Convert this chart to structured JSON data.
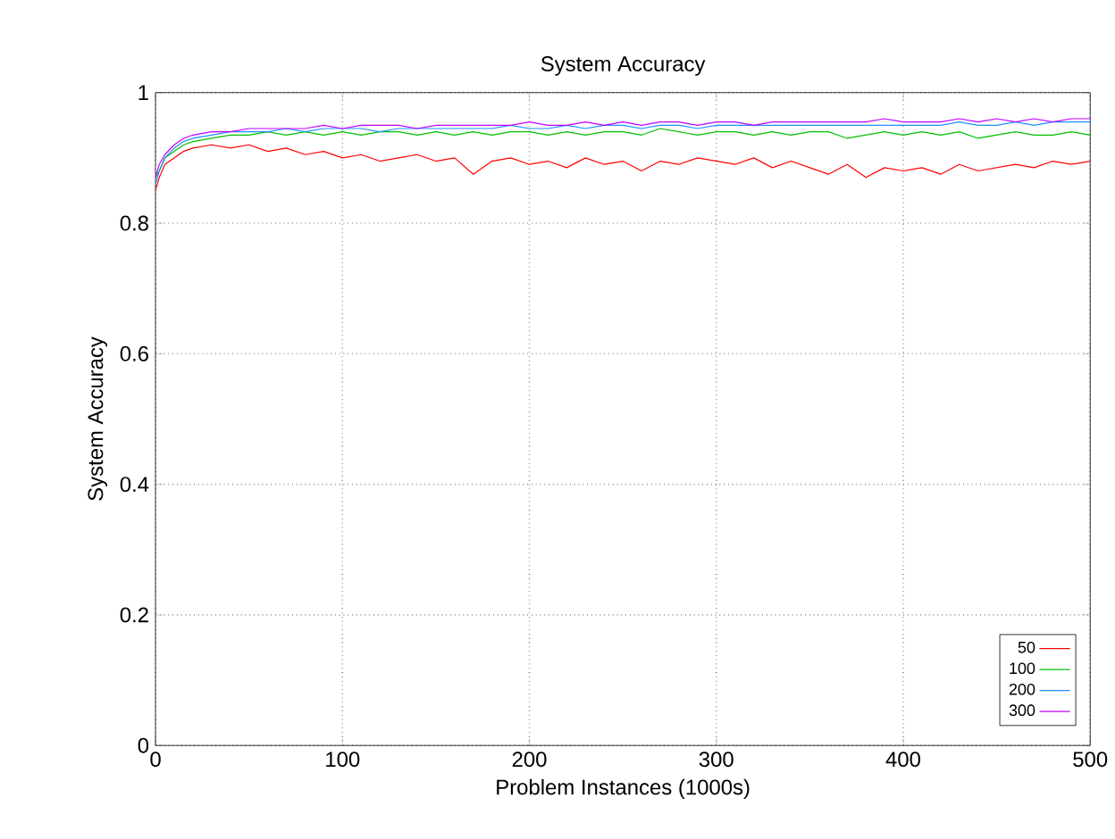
{
  "chart_data": {
    "type": "line",
    "title": "System Accuracy",
    "xlabel": "Problem Instances (1000s)",
    "ylabel": "System Accuracy",
    "x": [
      0,
      2,
      5,
      10,
      15,
      20,
      30,
      40,
      50,
      60,
      70,
      80,
      90,
      100,
      110,
      120,
      130,
      140,
      150,
      160,
      170,
      180,
      190,
      200,
      210,
      220,
      230,
      240,
      250,
      260,
      270,
      280,
      290,
      300,
      310,
      320,
      330,
      340,
      350,
      360,
      370,
      380,
      390,
      400,
      410,
      420,
      430,
      440,
      450,
      460,
      470,
      480,
      490,
      500
    ],
    "series": [
      {
        "name": "50",
        "color": "#ff0000",
        "values": [
          0.85,
          0.87,
          0.89,
          0.9,
          0.91,
          0.915,
          0.92,
          0.915,
          0.92,
          0.91,
          0.915,
          0.905,
          0.91,
          0.9,
          0.905,
          0.895,
          0.9,
          0.905,
          0.895,
          0.9,
          0.875,
          0.895,
          0.9,
          0.89,
          0.895,
          0.885,
          0.9,
          0.89,
          0.895,
          0.88,
          0.895,
          0.89,
          0.9,
          0.895,
          0.89,
          0.9,
          0.885,
          0.895,
          0.885,
          0.875,
          0.89,
          0.87,
          0.885,
          0.88,
          0.885,
          0.875,
          0.89,
          0.88,
          0.885,
          0.89,
          0.885,
          0.895,
          0.89,
          0.895
        ]
      },
      {
        "name": "100",
        "color": "#00c000",
        "values": [
          0.87,
          0.88,
          0.9,
          0.91,
          0.92,
          0.925,
          0.93,
          0.935,
          0.935,
          0.94,
          0.935,
          0.94,
          0.935,
          0.94,
          0.935,
          0.94,
          0.94,
          0.935,
          0.94,
          0.935,
          0.94,
          0.935,
          0.94,
          0.94,
          0.935,
          0.94,
          0.935,
          0.94,
          0.94,
          0.935,
          0.945,
          0.94,
          0.935,
          0.94,
          0.94,
          0.935,
          0.94,
          0.935,
          0.94,
          0.94,
          0.93,
          0.935,
          0.94,
          0.935,
          0.94,
          0.935,
          0.94,
          0.93,
          0.935,
          0.94,
          0.935,
          0.935,
          0.94,
          0.935
        ]
      },
      {
        "name": "200",
        "color": "#1e90ff",
        "values": [
          0.86,
          0.88,
          0.9,
          0.915,
          0.925,
          0.93,
          0.935,
          0.94,
          0.94,
          0.94,
          0.945,
          0.94,
          0.945,
          0.945,
          0.945,
          0.94,
          0.945,
          0.945,
          0.945,
          0.945,
          0.945,
          0.945,
          0.95,
          0.945,
          0.945,
          0.95,
          0.945,
          0.95,
          0.95,
          0.945,
          0.95,
          0.95,
          0.945,
          0.95,
          0.95,
          0.95,
          0.95,
          0.95,
          0.95,
          0.95,
          0.95,
          0.95,
          0.95,
          0.95,
          0.95,
          0.95,
          0.955,
          0.95,
          0.95,
          0.955,
          0.95,
          0.955,
          0.955,
          0.955
        ]
      },
      {
        "name": "300",
        "color": "#c000ff",
        "values": [
          0.87,
          0.89,
          0.905,
          0.92,
          0.93,
          0.935,
          0.94,
          0.94,
          0.945,
          0.945,
          0.945,
          0.945,
          0.95,
          0.945,
          0.95,
          0.95,
          0.95,
          0.945,
          0.95,
          0.95,
          0.95,
          0.95,
          0.95,
          0.955,
          0.95,
          0.95,
          0.955,
          0.95,
          0.955,
          0.95,
          0.955,
          0.955,
          0.95,
          0.955,
          0.955,
          0.95,
          0.955,
          0.955,
          0.955,
          0.955,
          0.955,
          0.955,
          0.96,
          0.955,
          0.955,
          0.955,
          0.96,
          0.955,
          0.96,
          0.955,
          0.96,
          0.955,
          0.96,
          0.96
        ]
      }
    ],
    "xlim": [
      0,
      500
    ],
    "ylim": [
      0,
      1
    ],
    "xticks": [
      0,
      100,
      200,
      300,
      400,
      500
    ],
    "yticks": [
      0,
      0.2,
      0.4,
      0.6,
      0.8,
      1
    ],
    "grid": true,
    "legend": "bottom right"
  }
}
